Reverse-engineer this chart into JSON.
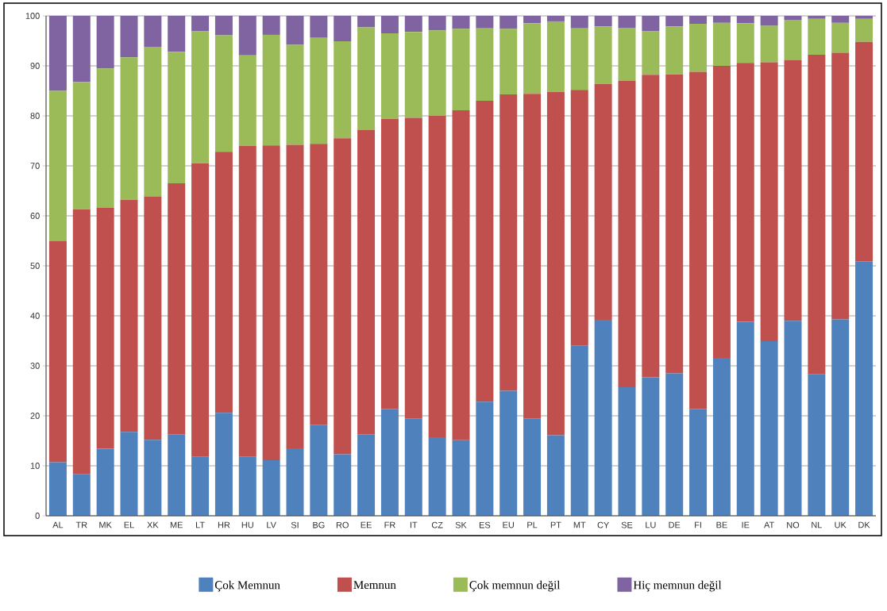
{
  "chart_data": {
    "type": "bar",
    "stacked": true,
    "grid": "y",
    "legend": "bottom",
    "categories": [
      "AL",
      "TR",
      "MK",
      "EL",
      "XK",
      "ME",
      "LT",
      "HR",
      "HU",
      "LV",
      "SI",
      "BG",
      "RO",
      "EE",
      "FR",
      "IT",
      "CZ",
      "SK",
      "ES",
      "EU",
      "PL",
      "PT",
      "MT",
      "CY",
      "SE",
      "LU",
      "DE",
      "FI",
      "BE",
      "IE",
      "AT",
      "NO",
      "NL",
      "UK",
      "DK"
    ],
    "ylim": [
      0,
      100
    ],
    "yticks": [
      0,
      10,
      20,
      30,
      40,
      50,
      60,
      70,
      80,
      90,
      100
    ],
    "series": [
      {
        "name": "Çok Memnun",
        "color": "#4f81bd",
        "values": [
          10.7,
          8.3,
          13.4,
          16.8,
          15.2,
          16.3,
          11.8,
          20.6,
          11.8,
          11.1,
          13.5,
          18.2,
          12.3,
          16.3,
          21.4,
          19.4,
          15.7,
          15.1,
          22.8,
          25.0,
          19.5,
          16.1,
          34.0,
          39.2,
          25.7,
          27.7,
          28.5,
          21.4,
          31.6,
          38.8,
          34.9,
          39.0,
          28.3,
          39.3,
          50.9
        ]
      },
      {
        "name": "Memnun",
        "color": "#c0504d",
        "values": [
          44.3,
          53.0,
          48.2,
          46.4,
          48.7,
          50.2,
          58.7,
          52.2,
          62.2,
          63.0,
          60.7,
          56.2,
          63.2,
          60.9,
          58.0,
          60.2,
          64.3,
          66.0,
          60.2,
          59.3,
          64.9,
          68.7,
          51.2,
          47.2,
          61.3,
          60.5,
          59.8,
          67.4,
          58.4,
          51.8,
          55.8,
          52.2,
          63.9,
          53.3,
          43.9
        ]
      },
      {
        "name": "Çok memnun değil",
        "color": "#9bbb59",
        "values": [
          30.0,
          25.5,
          27.9,
          28.5,
          29.9,
          26.3,
          26.4,
          23.3,
          18.1,
          22.1,
          20.0,
          21.2,
          19.4,
          20.5,
          17.1,
          17.2,
          17.1,
          16.3,
          14.5,
          13.1,
          14.1,
          14.1,
          12.3,
          11.5,
          10.6,
          8.7,
          9.6,
          9.6,
          8.6,
          7.9,
          7.3,
          8.0,
          7.2,
          6.0,
          4.6
        ]
      },
      {
        "name": "Hiç memnun değil",
        "color": "#8064a2",
        "values": [
          15.0,
          13.2,
          10.5,
          8.3,
          6.2,
          7.2,
          3.1,
          3.9,
          7.9,
          3.8,
          5.8,
          4.4,
          5.1,
          2.3,
          3.5,
          3.2,
          2.9,
          2.6,
          2.5,
          2.6,
          1.5,
          1.1,
          2.5,
          2.1,
          2.4,
          3.1,
          2.1,
          1.6,
          1.4,
          1.5,
          2.0,
          0.8,
          0.6,
          1.4,
          0.6
        ]
      }
    ]
  }
}
